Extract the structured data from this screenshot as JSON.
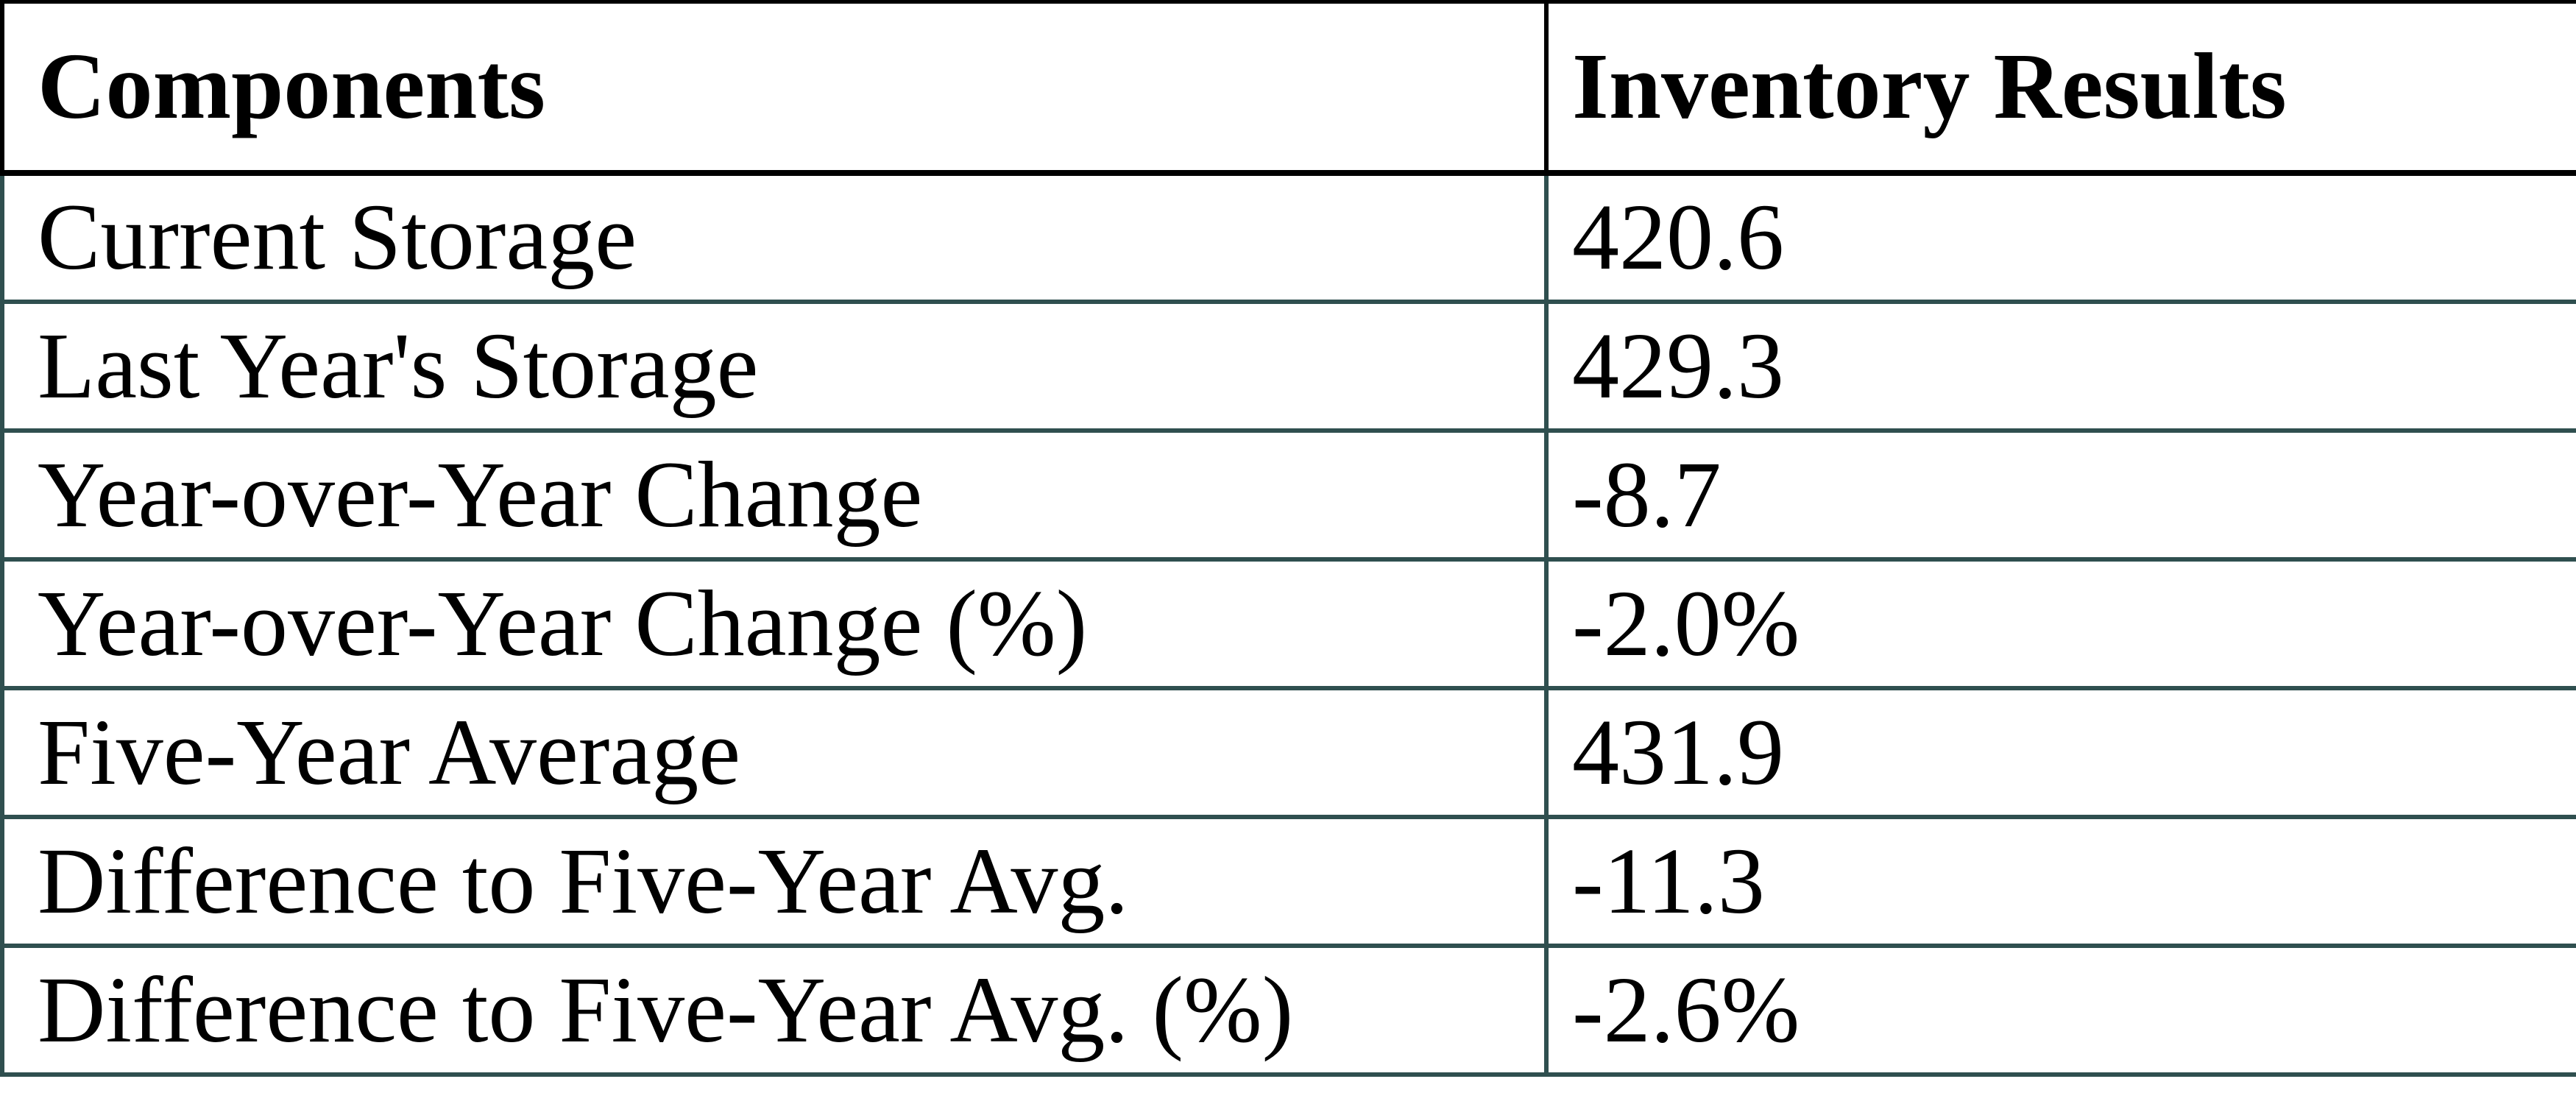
{
  "table": {
    "columns": [
      {
        "label": "Components"
      },
      {
        "label": "Inventory Results"
      }
    ],
    "rows": [
      {
        "label": "Current Storage",
        "value": "420.6"
      },
      {
        "label": "Last Year's Storage",
        "value": "429.3"
      },
      {
        "label": "Year-over-Year Change",
        "value": "-8.7"
      },
      {
        "label": "Year-over-Year Change (%)",
        "value": "-2.0%"
      },
      {
        "label": "Five-Year Average",
        "value": "431.9"
      },
      {
        "label": "Difference to Five-Year Avg.",
        "value": "-11.3"
      },
      {
        "label": "Difference to Five-Year Avg. (%)",
        "value": "-2.6%"
      }
    ],
    "colors": {
      "header_border": "#000000",
      "body_border": "#2F4F4F",
      "text": "#000000",
      "background": "#FFFFFF"
    }
  },
  "chart_data": {
    "type": "table",
    "title": "Inventory Results",
    "columns": [
      "Components",
      "Inventory Results"
    ],
    "rows": [
      [
        "Current Storage",
        "420.6"
      ],
      [
        "Last Year's Storage",
        "429.3"
      ],
      [
        "Year-over-Year Change",
        "-8.7"
      ],
      [
        "Year-over-Year Change (%)",
        "-2.0%"
      ],
      [
        "Five-Year Average",
        "431.9"
      ],
      [
        "Difference to Five-Year Avg.",
        "-11.3"
      ],
      [
        "Difference to Five-Year Avg. (%)",
        "-2.6%"
      ]
    ],
    "numeric_values": {
      "current_storage": 420.6,
      "last_year_storage": 429.3,
      "yoy_change": -8.7,
      "yoy_change_pct": -2.0,
      "five_year_average": 431.9,
      "diff_to_five_year_avg": -11.3,
      "diff_to_five_year_avg_pct": -2.6
    }
  }
}
